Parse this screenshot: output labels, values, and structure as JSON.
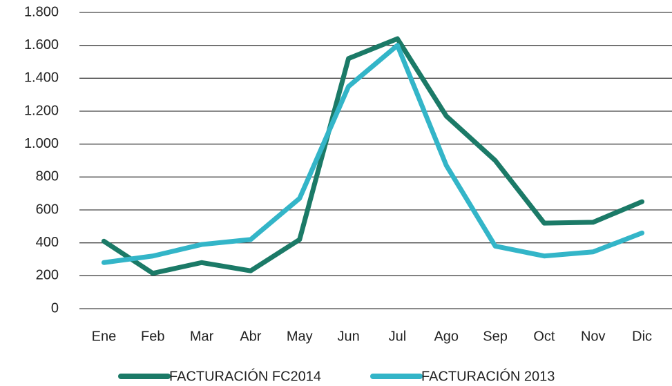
{
  "chart_data": {
    "type": "line",
    "categories": [
      "Ene",
      "Feb",
      "Mar",
      "Abr",
      "May",
      "Jun",
      "Jul",
      "Ago",
      "Sep",
      "Oct",
      "Nov",
      "Dic"
    ],
    "series": [
      {
        "name": "FACTURACIÓN FC2014",
        "color": "#1b7a67",
        "values": [
          410,
          215,
          280,
          230,
          420,
          1520,
          1640,
          1170,
          900,
          520,
          525,
          650
        ]
      },
      {
        "name": "FACTURACIÓN 2013",
        "color": "#33b5c8",
        "values": [
          280,
          320,
          390,
          420,
          670,
          1350,
          1600,
          870,
          380,
          320,
          345,
          460
        ]
      }
    ],
    "ylim": [
      0,
      1800
    ],
    "yticks": [
      0,
      200,
      400,
      600,
      800,
      {
        "value": 1000,
        "label": "1.000"
      },
      {
        "value": 1200,
        "label": "1.200"
      },
      {
        "value": 1400,
        "label": "1.400"
      },
      {
        "value": 1600,
        "label": "1.600"
      },
      {
        "value": 1800,
        "label": "1.800"
      }
    ],
    "grid": true,
    "legend": "bottom"
  }
}
